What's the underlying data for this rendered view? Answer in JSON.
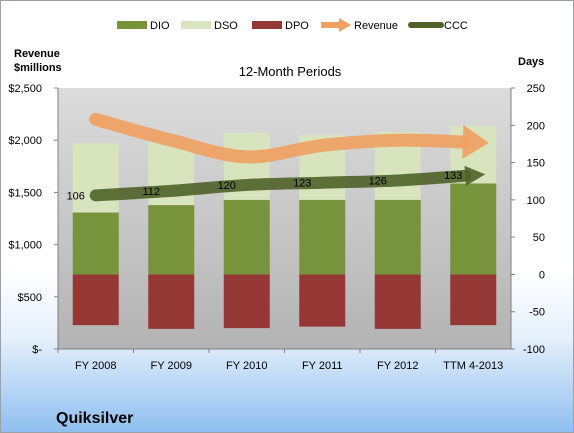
{
  "company": "Quiksilver",
  "chart_data": {
    "type": "bar",
    "title": "12-Month Periods",
    "categories": [
      "FY 2008",
      "FY 2009",
      "FY 2010",
      "FY 2011",
      "FY 2012",
      "TTM 4-2013"
    ],
    "left_axis": {
      "label_line1": "Revenue",
      "label_line2": "$millions",
      "ylim": [
        0,
        2500
      ],
      "ticks": [
        0,
        500,
        1000,
        1500,
        2000,
        2500
      ],
      "tick_labels": [
        "$-",
        "$500",
        "$1,000",
        "$1,500",
        "$2,000",
        "$2,500"
      ]
    },
    "right_axis": {
      "label": "Days",
      "ylim": [
        -100,
        250
      ],
      "ticks": [
        -100,
        -50,
        0,
        50,
        100,
        150,
        200,
        250
      ],
      "tick_labels": [
        "-100",
        "-50",
        "0",
        "50",
        "100",
        "150",
        "200",
        "250"
      ]
    },
    "legend_position": "top",
    "grid": false,
    "series": [
      {
        "name": "DIO",
        "axis": "right",
        "kind": "stacked-bar",
        "color": "#77933c",
        "values": [
          83,
          93,
          100,
          100,
          100,
          122
        ]
      },
      {
        "name": "DSO",
        "axis": "right",
        "kind": "stacked-bar",
        "color": "#d7e4bd",
        "values": [
          93,
          85,
          90,
          87,
          91,
          77
        ]
      },
      {
        "name": "DPO",
        "axis": "right",
        "kind": "negative-bar",
        "color": "#953735",
        "values": [
          -68,
          -73,
          -72,
          -70,
          -73,
          -68
        ]
      },
      {
        "name": "Revenue",
        "axis": "left",
        "kind": "arrow-line",
        "color": "#f0a060",
        "values": [
          2200,
          2000,
          1840,
          1950,
          2000,
          1980
        ]
      },
      {
        "name": "CCC",
        "axis": "right",
        "kind": "arrow-line",
        "color": "#4f6228",
        "values": [
          106,
          112,
          120,
          123,
          126,
          133
        ],
        "labels": [
          "106",
          "112",
          "120",
          "123",
          "126",
          "133"
        ]
      }
    ]
  }
}
